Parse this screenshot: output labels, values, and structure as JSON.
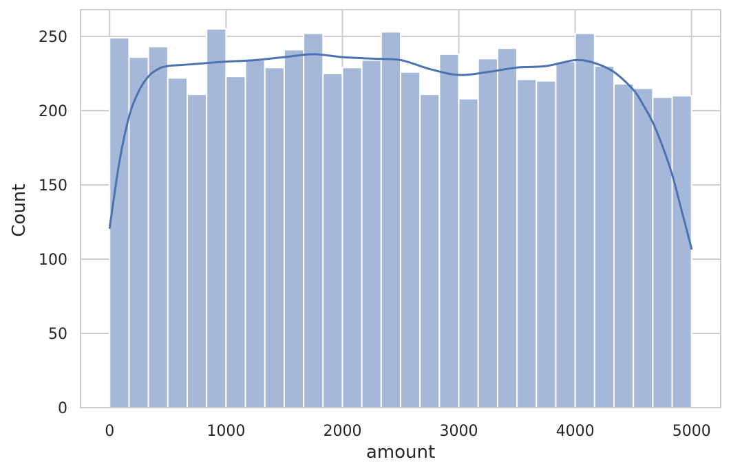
{
  "chart_data": {
    "type": "bar",
    "subtype": "histogram_with_kde",
    "title": "",
    "xlabel": "amount",
    "ylabel": "Count",
    "xlim": [
      -250,
      5250
    ],
    "ylim": [
      0,
      268
    ],
    "xticks": [
      0,
      1000,
      2000,
      3000,
      4000,
      5000
    ],
    "yticks": [
      0,
      50,
      100,
      150,
      200,
      250
    ],
    "bin_width": 166.67,
    "bin_edges": [
      0,
      166.67,
      333.33,
      500,
      666.67,
      833.33,
      1000,
      1166.67,
      1333.33,
      1500,
      1666.67,
      1833.33,
      2000,
      2166.67,
      2333.33,
      2500,
      2666.67,
      2833.33,
      3000,
      3166.67,
      3333.33,
      3500,
      3666.67,
      3833.33,
      4000,
      4166.67,
      4333.33,
      4500,
      4666.67,
      4833.33,
      5000
    ],
    "values": [
      249,
      236,
      243,
      222,
      211,
      255,
      223,
      234,
      229,
      241,
      252,
      225,
      229,
      234,
      253,
      226,
      211,
      238,
      208,
      235,
      242,
      221,
      220,
      233,
      252,
      230,
      218,
      215,
      209,
      210
    ],
    "kde": {
      "x": [
        0,
        83,
        167,
        250,
        333,
        417,
        500,
        667,
        833,
        1000,
        1250,
        1500,
        1750,
        2000,
        2250,
        2500,
        2750,
        3000,
        3250,
        3500,
        3750,
        4000,
        4167,
        4333,
        4500,
        4583,
        4667,
        4750,
        4833,
        4917,
        5000
      ],
      "y": [
        121,
        165,
        196,
        213,
        223,
        228,
        230,
        231,
        232,
        233,
        234,
        236,
        238,
        236,
        235,
        234,
        228,
        224,
        226,
        229,
        230,
        234,
        232,
        226,
        214,
        204,
        192,
        176,
        157,
        132,
        107
      ]
    },
    "grid": true,
    "colors": {
      "bar_fill": "#a6b8d9",
      "bar_edge": "#ffffff",
      "kde_line": "#4c72b0",
      "grid": "#cccccc",
      "axes_edge": "#cccccc"
    }
  }
}
